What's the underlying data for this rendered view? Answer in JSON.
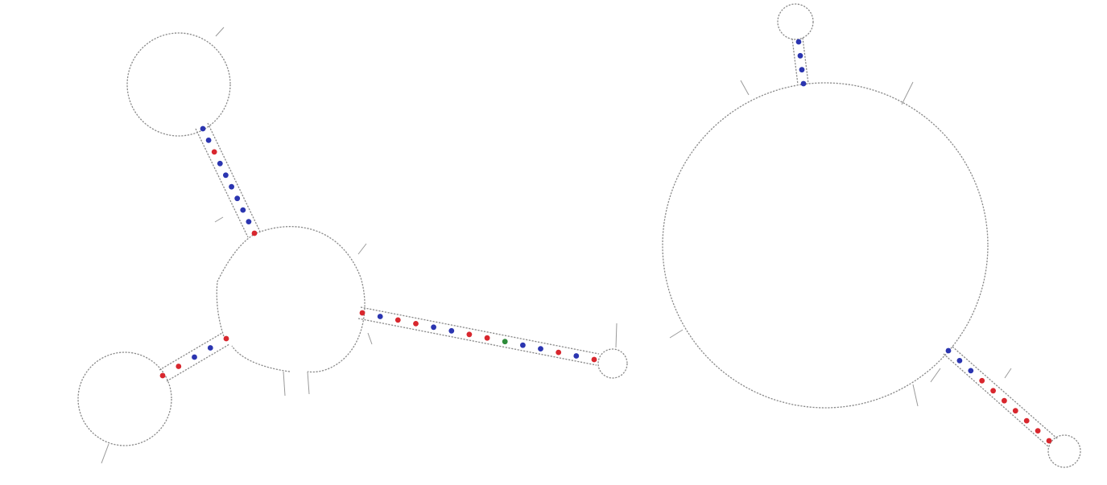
{
  "figure": {
    "description_colors": {
      "pair_au": "#2b35b0",
      "pair_gc": "#d8272e",
      "pair_gu": "#2e8b3a",
      "backbone": "#8a8a8a"
    },
    "structures": [
      {
        "id": "left",
        "stems": [
          {
            "name": "upper-stem",
            "pairs": [
              "au",
              "au",
              "gc",
              "au",
              "au",
              "au",
              "au",
              "au",
              "au",
              "gc"
            ]
          },
          {
            "name": "lower-stem",
            "pairs": [
              "gc",
              "au",
              "au",
              "gc",
              "gc"
            ]
          },
          {
            "name": "right-stem",
            "pairs": [
              "gc",
              "au",
              "gc",
              "gc",
              "au",
              "au",
              "gc",
              "gc",
              "gu",
              "au",
              "au",
              "gc",
              "au",
              "gc"
            ]
          }
        ]
      },
      {
        "id": "right",
        "stems": [
          {
            "name": "top-stem",
            "pairs": [
              "au",
              "au",
              "au",
              "au"
            ]
          },
          {
            "name": "bottom-stem",
            "pairs": [
              "au",
              "au",
              "au",
              "gc",
              "gc",
              "gc",
              "gc",
              "gc",
              "gc",
              "gc"
            ]
          }
        ]
      }
    ]
  }
}
